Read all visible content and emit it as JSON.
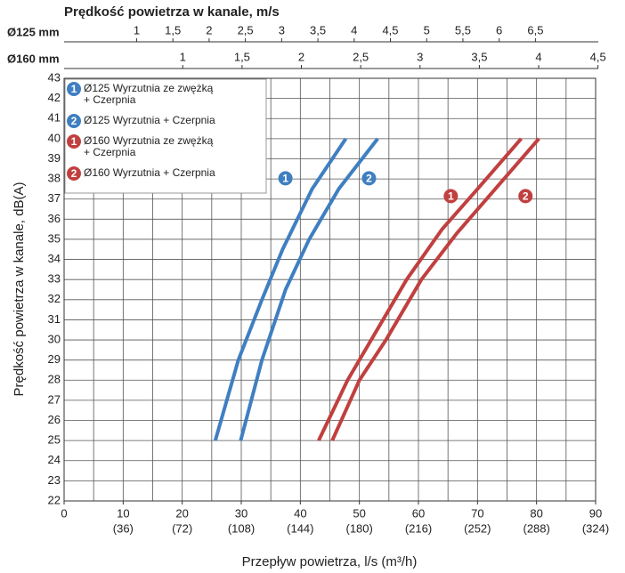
{
  "chart_data": {
    "type": "line",
    "title": "Prędkość powietrza w kanale, m/s",
    "ylabel": "Prędkość powietrza w kanale, dB(A)",
    "xlabel": "Przepływ powietrza, l/s (m³/h)",
    "xlim": [
      0,
      90
    ],
    "ylim": [
      22,
      43
    ],
    "xticks": [
      0,
      10,
      20,
      30,
      40,
      50,
      60,
      70,
      80,
      90
    ],
    "xtick_sublabels": [
      null,
      "(36)",
      "(72)",
      "(108)",
      "(144)",
      "(180)",
      "(216)",
      "(252)",
      "(288)",
      "(324)"
    ],
    "xgrid": [
      0,
      5,
      10,
      15,
      20,
      25,
      30,
      35,
      40,
      45,
      50,
      55,
      60,
      65,
      70,
      75,
      80,
      85,
      90
    ],
    "yticks": [
      22,
      23,
      24,
      25,
      26,
      27,
      28,
      29,
      30,
      31,
      32,
      33,
      34,
      35,
      36,
      37,
      38,
      39,
      40,
      41,
      42,
      43
    ],
    "grid": true,
    "legend": "upper left",
    "top_axes": [
      {
        "label": "Ø125 mm",
        "xlim": [
          0,
          7.33
        ],
        "ticks": [
          1,
          {
            "value": 1.5,
            "label": "1,5"
          },
          2,
          {
            "value": 2.5,
            "label": "2,5"
          },
          3,
          {
            "value": 3.5,
            "label": "3,5"
          },
          4,
          {
            "value": 4.5,
            "label": "4,5"
          },
          5,
          {
            "value": 5.5,
            "label": "5,5"
          },
          6,
          {
            "value": 6.5,
            "label": "6,5"
          }
        ]
      },
      {
        "label": "Ø160 mm",
        "xlim": [
          0,
          4.48
        ],
        "ticks": [
          1,
          {
            "value": 1.5,
            "label": "1,5"
          },
          2,
          {
            "value": 2.5,
            "label": "2,5"
          },
          3,
          {
            "value": 3.5,
            "label": "3,5"
          },
          4,
          {
            "value": 4.5,
            "label": "4,5"
          }
        ]
      }
    ],
    "series": [
      {
        "name": [
          "Ø125 Wyrzutnia ze zwężką",
          "+ Czerpnia"
        ],
        "badge": "1",
        "color": "#3f7fc1",
        "x": [
          25.6,
          29.5,
          33.5,
          37,
          42,
          47.7
        ],
        "values": [
          25,
          29,
          32,
          34.5,
          37.5,
          40
        ]
      },
      {
        "name": [
          "Ø125 Wyrzutnia + Czerpnia"
        ],
        "badge": "2",
        "color": "#3f7fc1",
        "x": [
          29.9,
          33.5,
          37.5,
          41.5,
          46.5,
          53.1
        ],
        "values": [
          25,
          29,
          32.5,
          35,
          37.5,
          40
        ]
      },
      {
        "name": [
          "Ø160 Wyrzutnia ze zwężką",
          "+ Czerpnia"
        ],
        "badge": "1",
        "color": "#c0403f",
        "x": [
          43.1,
          48,
          52,
          58,
          64,
          70,
          77.4
        ],
        "values": [
          25,
          28,
          30,
          33,
          35.5,
          37.5,
          40
        ]
      },
      {
        "name": [
          "Ø160 Wyrzutnia + Czerpnia"
        ],
        "badge": "2",
        "color": "#c0403f",
        "x": [
          45.4,
          50,
          54.5,
          60.5,
          66.5,
          73,
          80.4
        ],
        "values": [
          25,
          28,
          30,
          33,
          35.3,
          37.5,
          40
        ]
      }
    ]
  }
}
